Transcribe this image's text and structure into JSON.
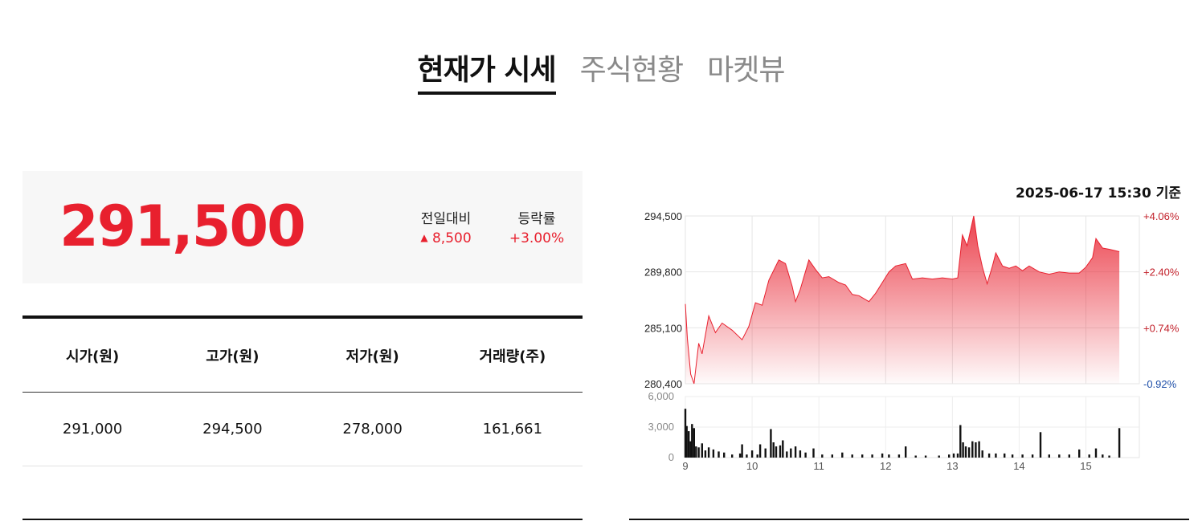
{
  "tabs": [
    {
      "label": "현재가 시세",
      "active": true
    },
    {
      "label": "주식현황",
      "active": false
    },
    {
      "label": "마켓뷰",
      "active": false
    }
  ],
  "quote": {
    "price": "291,500",
    "change_label": "전일대비",
    "change_value": "8,500",
    "change_icon": "up-triangle-icon",
    "rate_label": "등락률",
    "rate_value": "+3.00%",
    "color_up": "#e8202e"
  },
  "table": {
    "headers": [
      "시가(원)",
      "고가(원)",
      "저가(원)",
      "거래량(주)"
    ],
    "values": [
      "291,000",
      "294,500",
      "278,000",
      "161,661"
    ]
  },
  "as_of": "2025-06-17 15:30 기준",
  "chart_data": [
    {
      "type": "area",
      "x_ticks": [
        "9",
        "10",
        "11",
        "12",
        "13",
        "14",
        "15"
      ],
      "y_ticks": [
        "280,400",
        "285,100",
        "289,800",
        "294,500"
      ],
      "y_right_ticks": [
        "-0.92%",
        "+0.74%",
        "+2.40%",
        "+4.06%"
      ],
      "ylim": [
        280400,
        294500
      ],
      "xlim": [
        9,
        15.8
      ],
      "grid": true,
      "color": "#e8202e",
      "points": [
        [
          9.0,
          287100
        ],
        [
          9.03,
          284200
        ],
        [
          9.08,
          281200
        ],
        [
          9.13,
          280400
        ],
        [
          9.2,
          283800
        ],
        [
          9.25,
          282900
        ],
        [
          9.35,
          286100
        ],
        [
          9.45,
          284700
        ],
        [
          9.55,
          285500
        ],
        [
          9.7,
          284900
        ],
        [
          9.85,
          284100
        ],
        [
          9.95,
          285200
        ],
        [
          10.05,
          287200
        ],
        [
          10.15,
          287000
        ],
        [
          10.25,
          289100
        ],
        [
          10.4,
          290800
        ],
        [
          10.5,
          290500
        ],
        [
          10.6,
          288600
        ],
        [
          10.65,
          287300
        ],
        [
          10.72,
          288300
        ],
        [
          10.85,
          290800
        ],
        [
          10.95,
          290000
        ],
        [
          11.05,
          289300
        ],
        [
          11.15,
          289400
        ],
        [
          11.3,
          288900
        ],
        [
          11.4,
          288700
        ],
        [
          11.5,
          287900
        ],
        [
          11.6,
          287800
        ],
        [
          11.75,
          287300
        ],
        [
          11.85,
          288000
        ],
        [
          11.95,
          288900
        ],
        [
          12.05,
          289800
        ],
        [
          12.15,
          290300
        ],
        [
          12.3,
          290500
        ],
        [
          12.4,
          289200
        ],
        [
          12.55,
          289300
        ],
        [
          12.7,
          289200
        ],
        [
          12.85,
          289300
        ],
        [
          13.0,
          289200
        ],
        [
          13.08,
          289300
        ],
        [
          13.15,
          292900
        ],
        [
          13.22,
          292000
        ],
        [
          13.32,
          294500
        ],
        [
          13.38,
          292000
        ],
        [
          13.45,
          290200
        ],
        [
          13.52,
          288800
        ],
        [
          13.6,
          290300
        ],
        [
          13.65,
          291400
        ],
        [
          13.75,
          290300
        ],
        [
          13.85,
          290100
        ],
        [
          13.95,
          290300
        ],
        [
          14.05,
          289900
        ],
        [
          14.15,
          290300
        ],
        [
          14.3,
          289800
        ],
        [
          14.45,
          289600
        ],
        [
          14.6,
          289800
        ],
        [
          14.75,
          289700
        ],
        [
          14.9,
          289700
        ],
        [
          15.0,
          290200
        ],
        [
          15.1,
          291000
        ],
        [
          15.15,
          292600
        ],
        [
          15.25,
          291800
        ],
        [
          15.35,
          291700
        ],
        [
          15.5,
          291500
        ]
      ]
    },
    {
      "type": "bar",
      "y_ticks": [
        "0",
        "3,000",
        "6,000"
      ],
      "ylim": [
        0,
        6000
      ],
      "color": "#111111",
      "bars": [
        [
          9.0,
          4800
        ],
        [
          9.02,
          3100
        ],
        [
          9.05,
          2600
        ],
        [
          9.08,
          1600
        ],
        [
          9.1,
          3300
        ],
        [
          9.13,
          2900
        ],
        [
          9.16,
          1100
        ],
        [
          9.2,
          1000
        ],
        [
          9.25,
          1400
        ],
        [
          9.3,
          700
        ],
        [
          9.35,
          1000
        ],
        [
          9.42,
          800
        ],
        [
          9.5,
          600
        ],
        [
          9.58,
          500
        ],
        [
          9.7,
          300
        ],
        [
          9.82,
          400
        ],
        [
          9.85,
          1300
        ],
        [
          9.92,
          300
        ],
        [
          10.0,
          700
        ],
        [
          10.08,
          300
        ],
        [
          10.12,
          1300
        ],
        [
          10.2,
          900
        ],
        [
          10.28,
          2800
        ],
        [
          10.32,
          1500
        ],
        [
          10.36,
          1100
        ],
        [
          10.42,
          1200
        ],
        [
          10.46,
          1700
        ],
        [
          10.52,
          600
        ],
        [
          10.58,
          900
        ],
        [
          10.65,
          1100
        ],
        [
          10.72,
          700
        ],
        [
          10.8,
          500
        ],
        [
          10.92,
          900
        ],
        [
          11.05,
          300
        ],
        [
          11.2,
          300
        ],
        [
          11.35,
          500
        ],
        [
          11.5,
          300
        ],
        [
          11.65,
          300
        ],
        [
          11.8,
          300
        ],
        [
          11.95,
          400
        ],
        [
          12.05,
          300
        ],
        [
          12.2,
          300
        ],
        [
          12.3,
          1100
        ],
        [
          12.45,
          200
        ],
        [
          12.6,
          200
        ],
        [
          12.8,
          200
        ],
        [
          12.95,
          300
        ],
        [
          13.02,
          400
        ],
        [
          13.08,
          400
        ],
        [
          13.12,
          3200
        ],
        [
          13.16,
          1500
        ],
        [
          13.2,
          1100
        ],
        [
          13.25,
          1000
        ],
        [
          13.3,
          1600
        ],
        [
          13.35,
          1500
        ],
        [
          13.4,
          1600
        ],
        [
          13.45,
          700
        ],
        [
          13.55,
          400
        ],
        [
          13.65,
          400
        ],
        [
          13.78,
          400
        ],
        [
          13.9,
          300
        ],
        [
          14.05,
          300
        ],
        [
          14.2,
          300
        ],
        [
          14.32,
          2500
        ],
        [
          14.45,
          300
        ],
        [
          14.6,
          300
        ],
        [
          14.75,
          300
        ],
        [
          14.9,
          800
        ],
        [
          15.05,
          300
        ],
        [
          15.15,
          900
        ],
        [
          15.25,
          300
        ],
        [
          15.35,
          200
        ],
        [
          15.5,
          2900
        ]
      ]
    }
  ]
}
